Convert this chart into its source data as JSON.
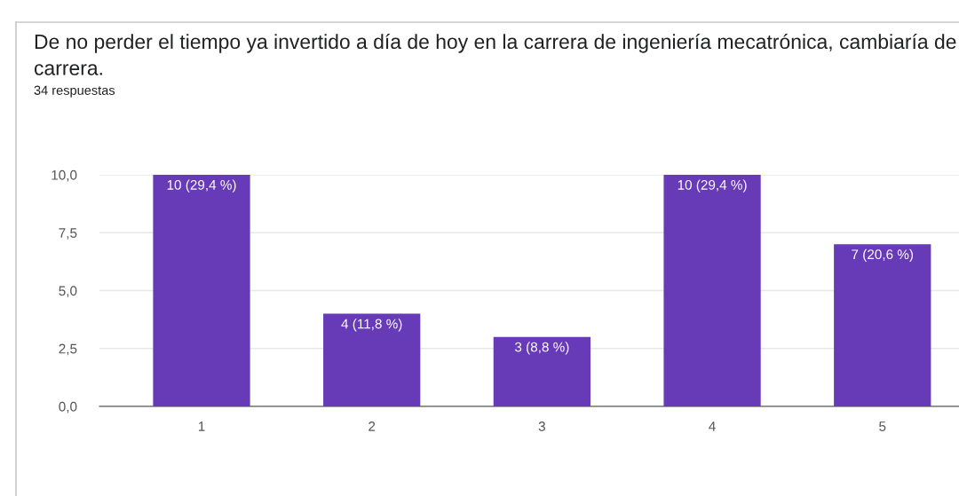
{
  "chart_data": {
    "type": "bar",
    "title": "De no perder el tiempo ya invertido a día de hoy en la carrera de ingeniería mecatrónica, cambiaría de carrera.",
    "subtitle": "34 respuestas",
    "categories": [
      "1",
      "2",
      "3",
      "4",
      "5"
    ],
    "values": [
      10,
      4,
      3,
      10,
      7
    ],
    "value_labels": [
      "10 (29,4 %)",
      "4 (11,8 %)",
      "3 (8,8 %)",
      "10 (29,4 %)",
      "7 (20,6 %)"
    ],
    "color": "#673ab7",
    "ylim": [
      0,
      10
    ],
    "yticks": [
      {
        "value": 0,
        "label": "0,0"
      },
      {
        "value": 2.5,
        "label": "2,5"
      },
      {
        "value": 5,
        "label": "5,0"
      },
      {
        "value": 7.5,
        "label": "7,5"
      },
      {
        "value": 10,
        "label": "10,0"
      }
    ],
    "grid": "y"
  }
}
